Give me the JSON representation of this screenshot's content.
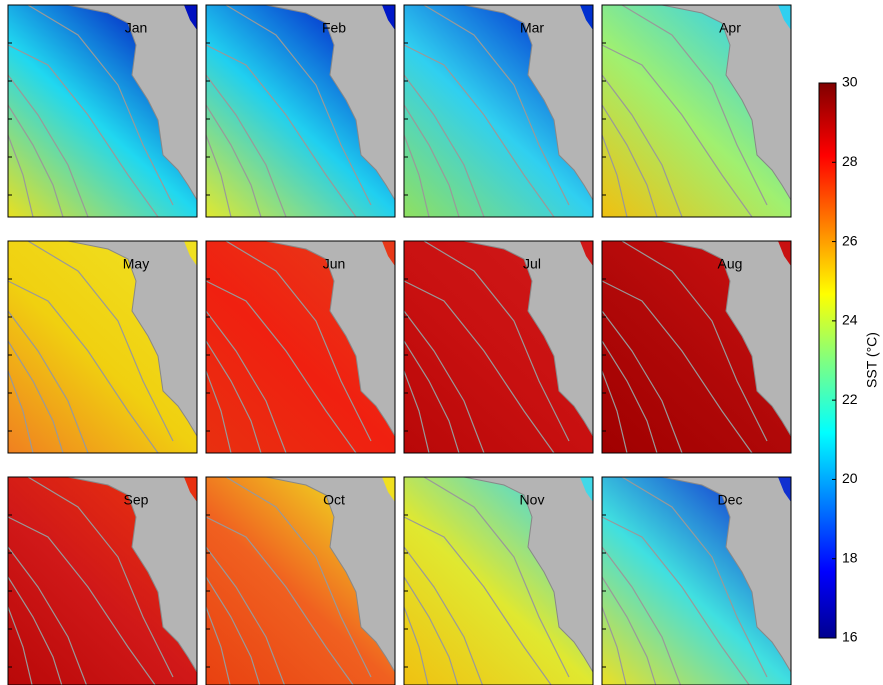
{
  "panels": [
    {
      "label": "Jan"
    },
    {
      "label": "Feb"
    },
    {
      "label": "Mar"
    },
    {
      "label": "Apr"
    },
    {
      "label": "May"
    },
    {
      "label": "Jun"
    },
    {
      "label": "Jul"
    },
    {
      "label": "Aug"
    },
    {
      "label": "Sep"
    },
    {
      "label": "Oct"
    },
    {
      "label": "Nov"
    },
    {
      "label": "Dec"
    }
  ],
  "colorbar": {
    "label": "SST (°C)",
    "lim": [
      16,
      30
    ],
    "ticks": [
      16,
      18,
      20,
      22,
      24,
      26,
      28,
      30
    ]
  }
}
